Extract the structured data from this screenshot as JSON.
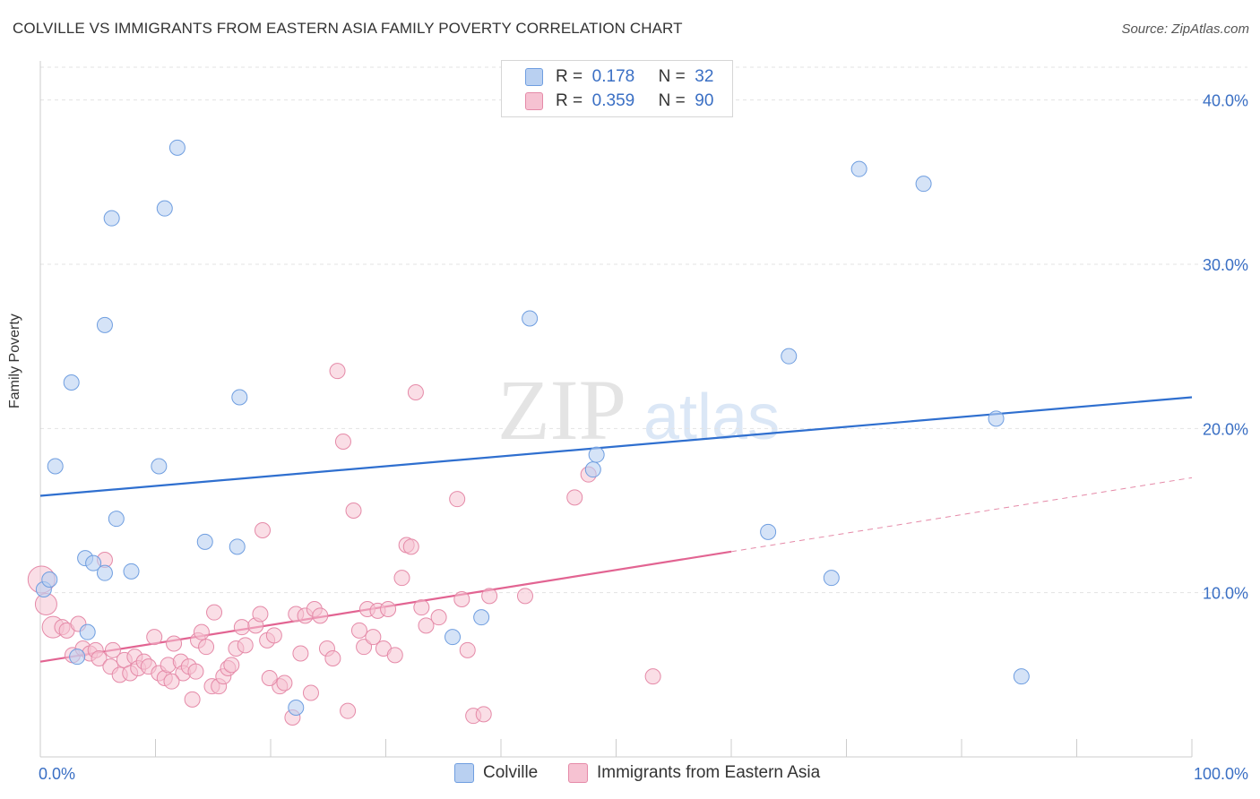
{
  "title": "COLVILLE VS IMMIGRANTS FROM EASTERN ASIA FAMILY POVERTY CORRELATION CHART",
  "source": "Source: ZipAtlas.com",
  "watermark": {
    "zip": "ZIP",
    "atlas": "atlas"
  },
  "legend": {
    "rows": [
      {
        "r_label": "R =",
        "r_value": "0.178",
        "n_label": "N =",
        "n_value": "32"
      },
      {
        "r_label": "R =",
        "r_value": "0.359",
        "n_label": "N =",
        "n_value": "90"
      }
    ]
  },
  "chart_data": {
    "type": "scatter",
    "title": "COLVILLE VS IMMIGRANTS FROM EASTERN ASIA FAMILY POVERTY CORRELATION CHART",
    "xlabel": "",
    "ylabel": "Family Poverty",
    "xlim": [
      0,
      100
    ],
    "ylim": [
      0,
      42
    ],
    "x_tick_labels": [
      "0.0%",
      "100.0%"
    ],
    "y_ticks": [
      10,
      20,
      30,
      40
    ],
    "y_tick_labels": [
      "10.0%",
      "20.0%",
      "30.0%",
      "40.0%"
    ],
    "grid": "horizontal dashed",
    "legend_position": "top-center",
    "series": [
      {
        "name": "Colville",
        "color": "#6f9ee0",
        "fill": "#b9d0f1",
        "r": 0.178,
        "n": 32,
        "trend": {
          "x": [
            0,
            100
          ],
          "y": [
            15.9,
            21.9
          ]
        },
        "points": [
          [
            0.3,
            10.2
          ],
          [
            0.8,
            10.8
          ],
          [
            1.3,
            17.7
          ],
          [
            2.7,
            22.8
          ],
          [
            3.9,
            12.1
          ],
          [
            4.6,
            11.8
          ],
          [
            5.6,
            26.3
          ],
          [
            5.6,
            11.2
          ],
          [
            6.2,
            32.8
          ],
          [
            6.6,
            14.5
          ],
          [
            7.9,
            11.3
          ],
          [
            10.3,
            17.7
          ],
          [
            10.8,
            33.4
          ],
          [
            11.9,
            37.1
          ],
          [
            14.3,
            13.1
          ],
          [
            17.3,
            21.9
          ],
          [
            17.1,
            12.8
          ],
          [
            42.5,
            26.7
          ],
          [
            48.0,
            17.5
          ],
          [
            48.3,
            18.4
          ],
          [
            63.2,
            13.7
          ],
          [
            65.0,
            24.4
          ],
          [
            71.1,
            35.8
          ],
          [
            76.7,
            34.9
          ],
          [
            83.0,
            20.6
          ],
          [
            68.7,
            10.9
          ],
          [
            85.2,
            4.9
          ],
          [
            22.2,
            3.0
          ],
          [
            35.8,
            7.3
          ],
          [
            38.3,
            8.5
          ],
          [
            4.1,
            7.6
          ],
          [
            3.2,
            6.1
          ]
        ]
      },
      {
        "name": "Immigrants from Eastern Asia",
        "color": "#e58aa8",
        "fill": "#f6c2d2",
        "r": 0.359,
        "n": 90,
        "trend": {
          "x": [
            0,
            60
          ],
          "y": [
            5.8,
            12.5
          ]
        },
        "trend_dashed": {
          "x": [
            60,
            100
          ],
          "y": [
            12.5,
            17.0
          ]
        },
        "points": [
          [
            0.1,
            10.8
          ],
          [
            0.5,
            9.3
          ],
          [
            1.1,
            7.9
          ],
          [
            1.9,
            7.9
          ],
          [
            2.3,
            7.7
          ],
          [
            2.8,
            6.2
          ],
          [
            3.3,
            8.1
          ],
          [
            3.7,
            6.6
          ],
          [
            4.3,
            6.3
          ],
          [
            4.8,
            6.5
          ],
          [
            5.1,
            6.0
          ],
          [
            5.6,
            12.0
          ],
          [
            6.1,
            5.5
          ],
          [
            6.3,
            6.5
          ],
          [
            6.9,
            5.0
          ],
          [
            7.3,
            5.9
          ],
          [
            7.8,
            5.1
          ],
          [
            8.2,
            6.1
          ],
          [
            8.5,
            5.4
          ],
          [
            9.0,
            5.8
          ],
          [
            9.4,
            5.5
          ],
          [
            9.9,
            7.3
          ],
          [
            10.3,
            5.1
          ],
          [
            10.8,
            4.8
          ],
          [
            11.1,
            5.6
          ],
          [
            11.6,
            6.9
          ],
          [
            12.2,
            5.8
          ],
          [
            12.4,
            5.1
          ],
          [
            12.9,
            5.5
          ],
          [
            13.2,
            3.5
          ],
          [
            13.7,
            7.1
          ],
          [
            14.0,
            7.6
          ],
          [
            14.4,
            6.7
          ],
          [
            14.9,
            4.3
          ],
          [
            15.1,
            8.8
          ],
          [
            15.5,
            4.3
          ],
          [
            15.9,
            4.9
          ],
          [
            16.3,
            5.4
          ],
          [
            16.6,
            5.6
          ],
          [
            17.0,
            6.6
          ],
          [
            17.5,
            7.9
          ],
          [
            17.8,
            6.8
          ],
          [
            18.7,
            8.0
          ],
          [
            19.1,
            8.7
          ],
          [
            19.3,
            13.8
          ],
          [
            19.7,
            7.1
          ],
          [
            20.3,
            7.4
          ],
          [
            20.8,
            4.3
          ],
          [
            21.2,
            4.5
          ],
          [
            21.9,
            2.4
          ],
          [
            22.2,
            8.7
          ],
          [
            22.6,
            6.3
          ],
          [
            23.0,
            8.6
          ],
          [
            23.5,
            3.9
          ],
          [
            23.8,
            9.0
          ],
          [
            24.3,
            8.6
          ],
          [
            24.9,
            6.6
          ],
          [
            25.4,
            6.0
          ],
          [
            25.8,
            23.5
          ],
          [
            26.3,
            19.2
          ],
          [
            26.7,
            2.8
          ],
          [
            27.2,
            15.0
          ],
          [
            27.7,
            7.7
          ],
          [
            28.1,
            6.7
          ],
          [
            28.4,
            9.0
          ],
          [
            28.9,
            7.3
          ],
          [
            29.3,
            8.9
          ],
          [
            29.8,
            6.6
          ],
          [
            30.2,
            9.0
          ],
          [
            30.8,
            6.2
          ],
          [
            31.4,
            10.9
          ],
          [
            31.8,
            12.9
          ],
          [
            32.2,
            12.8
          ],
          [
            32.6,
            22.2
          ],
          [
            33.1,
            9.1
          ],
          [
            33.5,
            8.0
          ],
          [
            34.6,
            8.5
          ],
          [
            36.2,
            15.7
          ],
          [
            36.6,
            9.6
          ],
          [
            37.1,
            6.5
          ],
          [
            37.6,
            2.5
          ],
          [
            39.0,
            9.8
          ],
          [
            42.1,
            9.8
          ],
          [
            46.4,
            15.8
          ],
          [
            47.6,
            17.2
          ],
          [
            53.2,
            4.9
          ],
          [
            11.4,
            4.6
          ],
          [
            19.9,
            4.8
          ],
          [
            13.5,
            5.2
          ],
          [
            38.5,
            2.6
          ]
        ]
      }
    ]
  },
  "bottom_legend": [
    {
      "label": "Colville"
    },
    {
      "label": "Immigrants from Eastern Asia"
    }
  ]
}
